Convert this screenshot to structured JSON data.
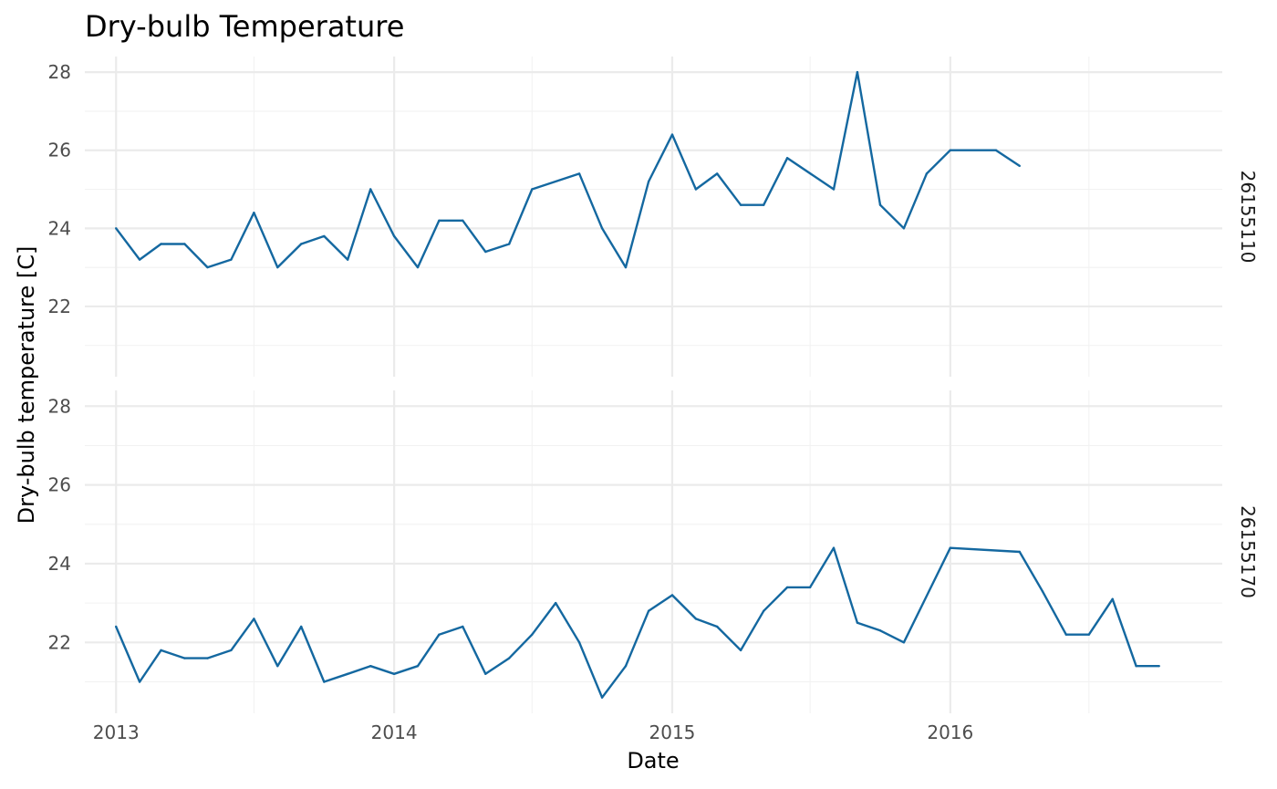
{
  "chart_data": {
    "type": "line",
    "title": "Dry-bulb Temperature",
    "xlabel": "Date",
    "ylabel": "Dry-bulb temperature [C]",
    "x_ticks": [
      "2013",
      "2014",
      "2015",
      "2016"
    ],
    "y_ticks": [
      "22",
      "24",
      "26",
      "28"
    ],
    "xlim": [
      "2012-11-21",
      "2016-12-23"
    ],
    "ylim": [
      20.2,
      28.4
    ],
    "grid": true,
    "color": "#1468a0",
    "panels": [
      {
        "strip_label": "26155110",
        "x": [
          "2013-01-01",
          "2013-02-01",
          "2013-03-01",
          "2013-04-01",
          "2013-05-01",
          "2013-06-01",
          "2013-07-01",
          "2013-08-01",
          "2013-09-01",
          "2013-10-01",
          "2013-11-01",
          "2013-12-01",
          "2014-01-01",
          "2014-02-01",
          "2014-03-01",
          "2014-04-01",
          "2014-05-01",
          "2014-06-01",
          "2014-07-01",
          "2014-09-01",
          "2014-10-01",
          "2014-11-01",
          "2014-12-01",
          "2015-01-01",
          "2015-02-01",
          "2015-03-01",
          "2015-04-01",
          "2015-05-01",
          "2015-06-01",
          "2015-08-01",
          "2015-09-01",
          "2015-10-01",
          "2015-11-01",
          "2015-12-01",
          "2016-01-01",
          "2016-03-01",
          "2016-04-01"
        ],
        "y": [
          24.0,
          23.2,
          23.6,
          23.6,
          23.0,
          23.2,
          24.4,
          23.0,
          23.6,
          23.8,
          23.2,
          25.0,
          23.8,
          23.0,
          24.2,
          24.2,
          23.4,
          23.6,
          25.0,
          25.4,
          24.0,
          23.0,
          25.2,
          26.4,
          25.0,
          25.4,
          24.6,
          24.6,
          25.8,
          25.0,
          28.0,
          24.6,
          24.0,
          25.4,
          26.0,
          26.0,
          25.6
        ]
      },
      {
        "strip_label": "26155170",
        "x": [
          "2013-01-01",
          "2013-02-01",
          "2013-03-01",
          "2013-04-01",
          "2013-05-01",
          "2013-06-01",
          "2013-07-01",
          "2013-08-01",
          "2013-09-01",
          "2013-10-01",
          "2013-11-01",
          "2013-12-01",
          "2014-01-01",
          "2014-02-01",
          "2014-03-01",
          "2014-04-01",
          "2014-05-01",
          "2014-06-01",
          "2014-07-01",
          "2014-08-01",
          "2014-09-01",
          "2014-10-01",
          "2014-11-01",
          "2014-12-01",
          "2015-01-01",
          "2015-02-01",
          "2015-03-01",
          "2015-04-01",
          "2015-05-01",
          "2015-06-01",
          "2015-07-01",
          "2015-08-01",
          "2015-09-01",
          "2015-10-01",
          "2015-11-01",
          "2016-01-01",
          "2016-04-01",
          "2016-05-01",
          "2016-06-01",
          "2016-07-01",
          "2016-08-01",
          "2016-09-01",
          "2016-10-01"
        ],
        "y": [
          22.4,
          21.0,
          21.8,
          21.6,
          21.6,
          21.8,
          22.6,
          21.4,
          22.4,
          21.0,
          21.2,
          21.4,
          21.2,
          21.4,
          22.2,
          22.4,
          21.2,
          21.6,
          22.2,
          23.0,
          22.0,
          20.6,
          21.4,
          22.8,
          23.2,
          22.6,
          22.4,
          21.8,
          22.8,
          23.4,
          23.4,
          24.4,
          22.5,
          22.3,
          22.0,
          24.4,
          24.3,
          23.3,
          22.2,
          22.2,
          23.1,
          21.4,
          21.4
        ]
      }
    ]
  }
}
